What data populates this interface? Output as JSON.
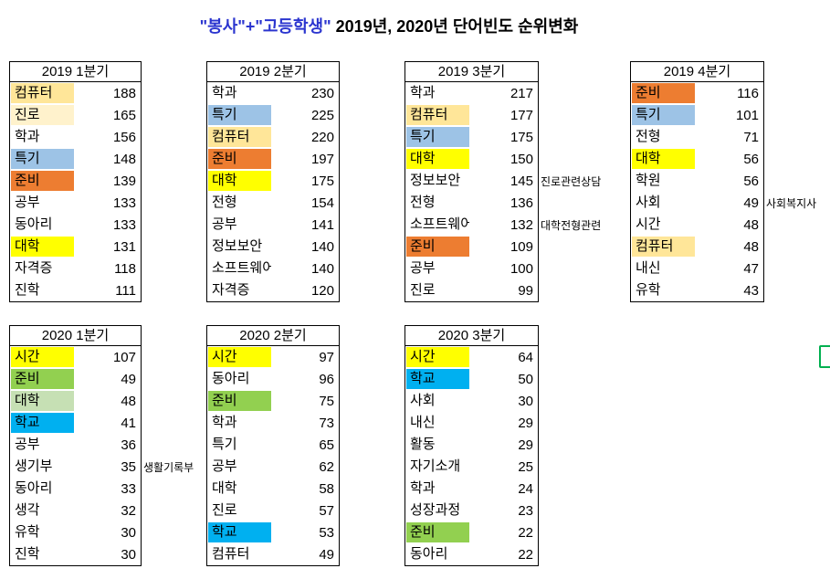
{
  "title": {
    "highlight": "\"봉사\"+\"고등학생\"",
    "rest": " 2019년, 2020년 단어빈도 순위변화"
  },
  "colors": {
    "title_highlight": "#2b35cf",
    "table_border": "#000000",
    "wheat": "#ffe699",
    "cream": "#fff2cc",
    "light_blue": "#9dc3e6",
    "orange": "#ed7d31",
    "yellow": "#ffff00",
    "green": "#92d050",
    "light_green": "#c6e0b4",
    "cyan": "#00b0f0",
    "bracket_green": "#00b050"
  },
  "chart_data": {
    "type": "table",
    "title": "\"봉사\"+\"고등학생\" 2019년, 2020년 단어빈도 순위변화",
    "tables": [
      {
        "header": "2019 1분기",
        "rows": [
          {
            "word": "컴퓨터",
            "value": 188,
            "bg": "wheat"
          },
          {
            "word": "진로",
            "value": 165,
            "bg": "cream"
          },
          {
            "word": "학과",
            "value": 156
          },
          {
            "word": "특기",
            "value": 148,
            "bg": "light_blue"
          },
          {
            "word": "준비",
            "value": 139,
            "bg": "orange"
          },
          {
            "word": "공부",
            "value": 133
          },
          {
            "word": "동아리",
            "value": 133
          },
          {
            "word": "대학",
            "value": 131,
            "bg": "yellow"
          },
          {
            "word": "자격증",
            "value": 118
          },
          {
            "word": "진학",
            "value": 111
          }
        ]
      },
      {
        "header": "2019 2분기",
        "rows": [
          {
            "word": "학과",
            "value": 230
          },
          {
            "word": "특기",
            "value": 225,
            "bg": "light_blue"
          },
          {
            "word": "컴퓨터",
            "value": 220,
            "bg": "wheat"
          },
          {
            "word": "준비",
            "value": 197,
            "bg": "orange"
          },
          {
            "word": "대학",
            "value": 175,
            "bg": "yellow"
          },
          {
            "word": "전형",
            "value": 154
          },
          {
            "word": "공부",
            "value": 141
          },
          {
            "word": "정보보안",
            "value": 140
          },
          {
            "word": "소프트웨어",
            "value": 140
          },
          {
            "word": "자격증",
            "value": 120
          }
        ]
      },
      {
        "header": "2019 3분기",
        "rows": [
          {
            "word": "학과",
            "value": 217
          },
          {
            "word": "컴퓨터",
            "value": 177,
            "bg": "wheat"
          },
          {
            "word": "특기",
            "value": 175,
            "bg": "light_blue"
          },
          {
            "word": "대학",
            "value": 150,
            "bg": "yellow"
          },
          {
            "word": "정보보안",
            "value": 145,
            "note": "진로관련상담"
          },
          {
            "word": "전형",
            "value": 136
          },
          {
            "word": "소프트웨어",
            "value": 132,
            "note": "대학전형관련"
          },
          {
            "word": "준비",
            "value": 109,
            "bg": "orange"
          },
          {
            "word": "공부",
            "value": 100
          },
          {
            "word": "진로",
            "value": 99
          }
        ]
      },
      {
        "header": "2019 4분기",
        "rows": [
          {
            "word": "준비",
            "value": 116,
            "bg": "orange"
          },
          {
            "word": "특기",
            "value": 101,
            "bg": "light_blue"
          },
          {
            "word": "전형",
            "value": 71
          },
          {
            "word": "대학",
            "value": 56,
            "bg": "yellow"
          },
          {
            "word": "학원",
            "value": 56
          },
          {
            "word": "사회",
            "value": 49,
            "note": "사회복지사"
          },
          {
            "word": "시간",
            "value": 48
          },
          {
            "word": "컴퓨터",
            "value": 48,
            "bg": "wheat"
          },
          {
            "word": "내신",
            "value": 47
          },
          {
            "word": "유학",
            "value": 43
          }
        ]
      },
      {
        "header": "2020 1분기",
        "rows": [
          {
            "word": "시간",
            "value": 107,
            "bg": "yellow"
          },
          {
            "word": "준비",
            "value": 49,
            "bg": "green"
          },
          {
            "word": "대학",
            "value": 48,
            "bg": "light_green"
          },
          {
            "word": "학교",
            "value": 41,
            "bg": "cyan"
          },
          {
            "word": "공부",
            "value": 36
          },
          {
            "word": "생기부",
            "value": 35,
            "note": "생활기록부"
          },
          {
            "word": "동아리",
            "value": 33
          },
          {
            "word": "생각",
            "value": 32
          },
          {
            "word": "유학",
            "value": 30
          },
          {
            "word": "진학",
            "value": 30
          }
        ]
      },
      {
        "header": "2020 2분기",
        "rows": [
          {
            "word": "시간",
            "value": 97,
            "bg": "yellow"
          },
          {
            "word": "동아리",
            "value": 96
          },
          {
            "word": "준비",
            "value": 75,
            "bg": "green"
          },
          {
            "word": "학과",
            "value": 73
          },
          {
            "word": "특기",
            "value": 65
          },
          {
            "word": "공부",
            "value": 62
          },
          {
            "word": "대학",
            "value": 58
          },
          {
            "word": "진로",
            "value": 57
          },
          {
            "word": "학교",
            "value": 53,
            "bg": "cyan"
          },
          {
            "word": "컴퓨터",
            "value": 49
          }
        ]
      },
      {
        "header": "2020 3분기",
        "rows": [
          {
            "word": "시간",
            "value": 64,
            "bg": "yellow"
          },
          {
            "word": "학교",
            "value": 50,
            "bg": "cyan"
          },
          {
            "word": "사회",
            "value": 30
          },
          {
            "word": "내신",
            "value": 29
          },
          {
            "word": "활동",
            "value": 29
          },
          {
            "word": "자기소개",
            "value": 25
          },
          {
            "word": "학과",
            "value": 24
          },
          {
            "word": "성장과정",
            "value": 23
          },
          {
            "word": "준비",
            "value": 22,
            "bg": "green"
          },
          {
            "word": "동아리",
            "value": 22
          }
        ]
      }
    ]
  }
}
